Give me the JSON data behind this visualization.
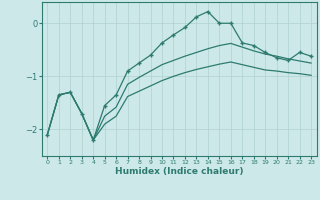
{
  "xlabel": "Humidex (Indice chaleur)",
  "background_color": "#cde8e8",
  "grid_color": "#b0d0d0",
  "line_color": "#2d7b6f",
  "x": [
    0,
    1,
    2,
    3,
    4,
    5,
    6,
    7,
    8,
    9,
    10,
    11,
    12,
    13,
    14,
    15,
    16,
    17,
    18,
    19,
    20,
    21,
    22,
    23
  ],
  "line_main": [
    -2.1,
    -1.35,
    -1.3,
    -1.7,
    -2.2,
    -1.55,
    -1.35,
    -0.9,
    -0.75,
    -0.6,
    -0.37,
    -0.22,
    -0.08,
    0.12,
    0.22,
    0.0,
    0.0,
    -0.37,
    -0.42,
    -0.55,
    -0.65,
    -0.7,
    -0.55,
    -0.62
  ],
  "line_upper": [
    -2.1,
    -1.35,
    -1.3,
    -1.7,
    -2.2,
    -1.75,
    -1.58,
    -1.15,
    -1.02,
    -0.9,
    -0.78,
    -0.7,
    -0.62,
    -0.55,
    -0.48,
    -0.42,
    -0.38,
    -0.45,
    -0.52,
    -0.58,
    -0.62,
    -0.67,
    -0.71,
    -0.75
  ],
  "line_lower": [
    -2.1,
    -1.35,
    -1.3,
    -1.7,
    -2.2,
    -1.9,
    -1.75,
    -1.38,
    -1.28,
    -1.18,
    -1.08,
    -1.0,
    -0.93,
    -0.87,
    -0.82,
    -0.77,
    -0.73,
    -0.78,
    -0.83,
    -0.88,
    -0.9,
    -0.93,
    -0.95,
    -0.98
  ],
  "ylim": [
    -2.5,
    0.4
  ],
  "yticks": [
    0,
    -1,
    -2
  ],
  "xlim": [
    -0.5,
    23.5
  ]
}
